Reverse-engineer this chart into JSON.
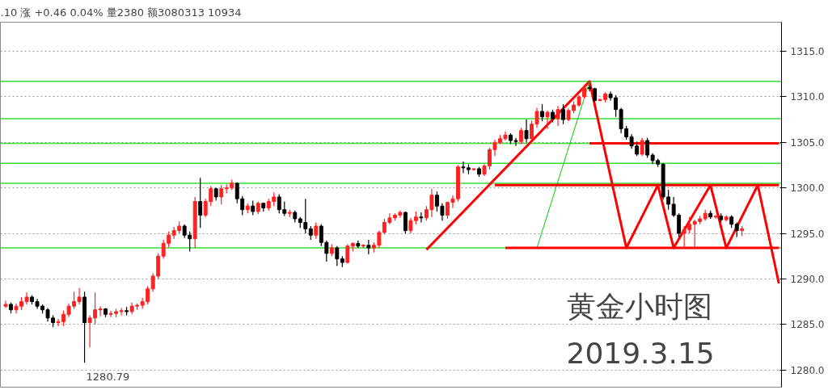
{
  "chart_data": {
    "type": "candlestick",
    "title": "黄金小时图",
    "subtitle": "2019.3.15",
    "annotations": [
      ".10 涨 +0.46 0.04% 量2380 额3080313 10934",
      "1280.79"
    ],
    "categories": [
      null,
      null,
      null,
      null,
      null,
      null,
      null,
      null,
      null,
      null,
      null,
      null,
      null,
      null,
      null,
      null,
      null,
      null,
      null,
      null,
      null,
      null,
      null,
      null,
      null,
      null,
      null,
      null,
      null,
      null,
      null,
      null,
      null,
      null,
      null,
      null,
      null,
      null,
      null,
      null,
      null,
      null,
      null,
      null,
      null,
      null,
      null,
      null,
      null,
      null,
      null,
      null,
      null,
      null,
      null,
      null,
      null,
      null,
      null,
      null,
      null,
      null,
      null,
      null,
      null,
      null,
      null,
      null,
      null,
      null,
      null,
      null,
      null,
      null,
      null,
      null,
      null,
      null,
      null,
      null,
      null,
      null,
      null,
      null,
      null,
      null,
      null,
      null,
      null,
      null,
      null,
      null,
      null,
      null,
      null,
      null,
      null,
      null,
      null,
      null,
      null,
      null,
      null,
      null,
      null,
      null,
      null,
      null,
      null,
      null,
      null,
      null,
      null,
      null,
      null,
      null,
      null,
      null,
      null,
      null,
      null,
      null,
      null,
      null,
      null,
      null,
      null,
      null,
      null,
      null,
      null,
      null,
      null,
      null,
      null,
      null,
      null,
      null,
      null,
      null,
      null,
      null,
      null,
      null,
      null,
      null,
      null,
      null
    ],
    "ohlc": [
      [
        1287.0,
        1287.6,
        1286.8,
        1287.2
      ],
      [
        1287.2,
        1287.4,
        1286.2,
        1286.6
      ],
      [
        1286.6,
        1287.3,
        1286.2,
        1287.0
      ],
      [
        1287.0,
        1288.0,
        1286.6,
        1287.5
      ],
      [
        1287.5,
        1288.5,
        1287.2,
        1288.0
      ],
      [
        1288.0,
        1288.2,
        1287.2,
        1287.5
      ],
      [
        1287.5,
        1287.8,
        1286.7,
        1287.0
      ],
      [
        1287.0,
        1287.2,
        1286.2,
        1286.6
      ],
      [
        1286.6,
        1286.8,
        1285.3,
        1285.7
      ],
      [
        1285.7,
        1286.0,
        1284.7,
        1285.2
      ],
      [
        1285.2,
        1285.6,
        1284.8,
        1285.3
      ],
      [
        1285.3,
        1286.5,
        1284.8,
        1286.1
      ],
      [
        1286.1,
        1287.3,
        1285.8,
        1287.0
      ],
      [
        1287.0,
        1288.6,
        1286.7,
        1287.5
      ],
      [
        1287.5,
        1289.0,
        1287.2,
        1288.0
      ],
      [
        1288.0,
        1288.6,
        1280.79,
        1285.2
      ],
      [
        1285.2,
        1286.0,
        1282.5,
        1285.7
      ],
      [
        1285.7,
        1288.5,
        1285.0,
        1286.6
      ],
      [
        1286.6,
        1287.0,
        1285.9,
        1286.7
      ],
      [
        1286.7,
        1286.8,
        1285.8,
        1286.1
      ],
      [
        1286.1,
        1286.5,
        1285.8,
        1286.2
      ],
      [
        1286.2,
        1286.7,
        1285.8,
        1286.4
      ],
      [
        1286.4,
        1286.8,
        1286.0,
        1286.5
      ],
      [
        1286.5,
        1286.9,
        1286.0,
        1286.4
      ],
      [
        1286.4,
        1287.4,
        1286.1,
        1287.0
      ],
      [
        1287.0,
        1287.3,
        1286.6,
        1287.1
      ],
      [
        1287.1,
        1287.9,
        1286.7,
        1287.5
      ],
      [
        1287.5,
        1289.2,
        1287.2,
        1288.9
      ],
      [
        1288.9,
        1290.6,
        1288.6,
        1290.3
      ],
      [
        1290.3,
        1292.8,
        1290.0,
        1292.5
      ],
      [
        1292.5,
        1294.3,
        1292.2,
        1293.9
      ],
      [
        1293.9,
        1295.2,
        1293.5,
        1294.8
      ],
      [
        1294.8,
        1295.7,
        1294.4,
        1295.3
      ],
      [
        1295.3,
        1296.3,
        1295.0,
        1295.8
      ],
      [
        1295.8,
        1296.0,
        1294.5,
        1294.8
      ],
      [
        1294.8,
        1295.2,
        1293.0,
        1294.4
      ],
      [
        1294.4,
        1299.0,
        1293.4,
        1298.5
      ],
      [
        1298.5,
        1301.1,
        1295.6,
        1297.0
      ],
      [
        1297.0,
        1298.8,
        1296.8,
        1298.5
      ],
      [
        1298.5,
        1300.2,
        1298.0,
        1299.9
      ],
      [
        1299.9,
        1300.0,
        1298.6,
        1299.0
      ],
      [
        1299.0,
        1300.3,
        1298.2,
        1299.9
      ],
      [
        1299.9,
        1300.4,
        1299.4,
        1300.0
      ],
      [
        1300.0,
        1300.9,
        1299.8,
        1300.5
      ],
      [
        1300.5,
        1300.6,
        1298.3,
        1298.8
      ],
      [
        1298.8,
        1299.1,
        1297.0,
        1297.6
      ],
      [
        1297.6,
        1298.3,
        1297.2,
        1298.0
      ],
      [
        1298.0,
        1298.6,
        1297.0,
        1297.4
      ],
      [
        1297.4,
        1298.5,
        1297.1,
        1298.3
      ],
      [
        1298.3,
        1298.4,
        1297.4,
        1297.8
      ],
      [
        1297.8,
        1298.8,
        1297.5,
        1298.5
      ],
      [
        1298.5,
        1299.5,
        1298.0,
        1299.0
      ],
      [
        1299.0,
        1299.3,
        1297.2,
        1297.6
      ],
      [
        1297.6,
        1298.5,
        1296.9,
        1297.2
      ],
      [
        1297.2,
        1297.6,
        1296.8,
        1297.3
      ],
      [
        1297.3,
        1297.5,
        1296.2,
        1296.6
      ],
      [
        1296.6,
        1296.8,
        1295.6,
        1296.2
      ],
      [
        1296.2,
        1298.8,
        1295.0,
        1295.5
      ],
      [
        1295.5,
        1295.8,
        1294.3,
        1294.8
      ],
      [
        1294.8,
        1296.2,
        1294.4,
        1295.8
      ],
      [
        1295.8,
        1296.0,
        1293.6,
        1294.0
      ],
      [
        1294.0,
        1294.2,
        1291.9,
        1292.8
      ],
      [
        1292.8,
        1293.8,
        1292.5,
        1293.4
      ],
      [
        1293.4,
        1293.6,
        1291.4,
        1292.2
      ],
      [
        1292.2,
        1292.5,
        1291.3,
        1291.8
      ],
      [
        1291.8,
        1293.8,
        1291.7,
        1293.6
      ],
      [
        1293.6,
        1294.0,
        1293.0,
        1293.9
      ],
      [
        1293.9,
        1294.2,
        1293.4,
        1293.6
      ],
      [
        1293.6,
        1293.8,
        1293.4,
        1293.7
      ],
      [
        1293.7,
        1294.3,
        1292.7,
        1293.4
      ],
      [
        1293.4,
        1294.0,
        1292.9,
        1293.7
      ],
      [
        1293.7,
        1295.3,
        1293.4,
        1295.1
      ],
      [
        1295.1,
        1296.6,
        1294.9,
        1296.2
      ],
      [
        1296.2,
        1297.2,
        1296.0,
        1296.7
      ],
      [
        1296.7,
        1297.2,
        1296.4,
        1297.0
      ],
      [
        1297.0,
        1297.5,
        1296.7,
        1297.3
      ],
      [
        1297.3,
        1297.4,
        1295.0,
        1295.3
      ],
      [
        1295.3,
        1296.7,
        1295.0,
        1296.4
      ],
      [
        1296.4,
        1297.4,
        1296.0,
        1296.8
      ],
      [
        1296.8,
        1297.3,
        1296.2,
        1296.7
      ],
      [
        1296.7,
        1298.0,
        1296.4,
        1297.6
      ],
      [
        1297.6,
        1299.9,
        1296.8,
        1299.2
      ],
      [
        1299.2,
        1299.6,
        1297.4,
        1298.0
      ],
      [
        1298.0,
        1298.3,
        1296.4,
        1297.0
      ],
      [
        1297.0,
        1298.5,
        1296.6,
        1298.4
      ],
      [
        1298.4,
        1299.2,
        1297.8,
        1298.8
      ],
      [
        1298.8,
        1302.5,
        1298.5,
        1302.3
      ],
      [
        1302.3,
        1302.9,
        1301.6,
        1302.2
      ],
      [
        1302.2,
        1302.6,
        1301.5,
        1302.0
      ],
      [
        1302.0,
        1302.1,
        1301.9,
        1302.1
      ],
      [
        1302.1,
        1302.3,
        1301.2,
        1301.5
      ],
      [
        1301.5,
        1302.6,
        1301.3,
        1302.4
      ],
      [
        1302.4,
        1304.4,
        1302.0,
        1304.2
      ],
      [
        1304.2,
        1305.3,
        1303.5,
        1305.0
      ],
      [
        1305.0,
        1305.8,
        1304.8,
        1305.4
      ],
      [
        1305.4,
        1306.2,
        1305.2,
        1305.8
      ],
      [
        1305.8,
        1306.0,
        1304.8,
        1305.2
      ],
      [
        1305.2,
        1305.5,
        1304.6,
        1305.1
      ],
      [
        1305.1,
        1306.6,
        1304.8,
        1306.3
      ],
      [
        1306.3,
        1307.5,
        1305.0,
        1305.4
      ],
      [
        1305.4,
        1307.4,
        1305.2,
        1307.0
      ],
      [
        1307.0,
        1308.8,
        1306.6,
        1308.4
      ],
      [
        1308.4,
        1309.2,
        1307.3,
        1307.8
      ],
      [
        1307.8,
        1308.5,
        1306.5,
        1308.3
      ],
      [
        1308.3,
        1308.6,
        1307.2,
        1307.6
      ],
      [
        1307.6,
        1309.0,
        1306.8,
        1308.6
      ],
      [
        1308.6,
        1309.2,
        1307.0,
        1307.5
      ],
      [
        1307.5,
        1308.7,
        1307.3,
        1308.5
      ],
      [
        1308.5,
        1309.5,
        1308.2,
        1309.1
      ],
      [
        1309.1,
        1310.2,
        1308.9,
        1310.0
      ],
      [
        1310.0,
        1311.3,
        1309.8,
        1311.0
      ],
      [
        1311.0,
        1311.3,
        1310.6,
        1310.9
      ],
      [
        1310.9,
        1311.0,
        1309.4,
        1309.6
      ],
      [
        1309.6,
        1309.8,
        1309.5,
        1309.7
      ],
      [
        1309.7,
        1310.5,
        1309.4,
        1310.3
      ],
      [
        1310.3,
        1310.6,
        1309.6,
        1309.9
      ],
      [
        1309.9,
        1310.2,
        1307.8,
        1308.6
      ],
      [
        1308.6,
        1308.8,
        1306.0,
        1306.5
      ],
      [
        1306.5,
        1306.8,
        1305.3,
        1305.6
      ],
      [
        1305.6,
        1305.9,
        1304.3,
        1304.6
      ],
      [
        1304.6,
        1305.1,
        1303.5,
        1303.7
      ],
      [
        1303.7,
        1305.5,
        1303.5,
        1305.2
      ],
      [
        1305.2,
        1305.5,
        1303.3,
        1303.6
      ],
      [
        1303.6,
        1303.8,
        1302.6,
        1303.0
      ],
      [
        1303.0,
        1303.2,
        1302.3,
        1302.6
      ],
      [
        1302.6,
        1302.7,
        1298.7,
        1299.0
      ],
      [
        1299.0,
        1299.8,
        1297.6,
        1298.2
      ],
      [
        1298.2,
        1299.0,
        1296.8,
        1297.0
      ],
      [
        1297.0,
        1297.2,
        1294.6,
        1295.0
      ],
      [
        1295.0,
        1295.8,
        1293.4,
        1295.4
      ],
      [
        1295.4,
        1296.8,
        1295.0,
        1296.0
      ],
      [
        1296.0,
        1296.5,
        1293.4,
        1296.3
      ],
      [
        1296.3,
        1296.9,
        1296.0,
        1296.6
      ],
      [
        1296.6,
        1297.6,
        1296.4,
        1297.2
      ],
      [
        1297.2,
        1297.5,
        1296.6,
        1296.8
      ],
      [
        1296.8,
        1297.0,
        1296.6,
        1296.9
      ],
      [
        1296.9,
        1297.2,
        1296.2,
        1296.5
      ],
      [
        1296.5,
        1297.0,
        1296.3,
        1296.8
      ],
      [
        1296.8,
        1297.0,
        1295.6,
        1296.0
      ],
      [
        1296.0,
        1296.2,
        1294.6,
        1295.3
      ],
      [
        1295.3,
        1295.8,
        1294.7,
        1295.5
      ],
      null,
      null,
      null,
      null,
      null,
      null,
      null
    ],
    "series": [
      {
        "type": "line",
        "color": "#ff0000",
        "values": [
          null,
          null,
          null,
          null,
          null,
          null,
          null,
          null,
          null,
          null,
          null,
          null,
          null,
          null,
          null,
          null,
          null,
          null,
          null,
          null,
          null,
          null,
          null,
          null,
          null,
          null,
          null,
          null,
          null,
          null,
          null,
          null,
          null,
          null,
          null,
          null,
          null,
          null,
          null,
          null,
          null,
          null,
          null,
          null,
          null,
          null,
          null,
          null,
          null,
          null,
          null,
          null,
          null,
          null,
          null,
          null,
          null,
          null,
          null,
          null,
          null,
          null,
          null,
          null,
          null,
          null,
          null,
          null,
          null,
          null,
          null,
          null,
          null,
          null,
          null,
          null,
          null,
          null,
          null,
          null,
          1293.2,
          null,
          null,
          null,
          null,
          null,
          null,
          null,
          null,
          null,
          null,
          null,
          null,
          null,
          null,
          null,
          null,
          null,
          null,
          null,
          null,
          null,
          null,
          null,
          null,
          null,
          null,
          null,
          null,
          null,
          null,
          1311.7,
          null,
          null,
          null,
          null,
          null,
          null,
          1293.4,
          null,
          null,
          null,
          null,
          null,
          1300.3,
          null,
          null,
          1293.4,
          null,
          null,
          null,
          null,
          null,
          null,
          1300.3,
          null,
          null,
          1293.4,
          null,
          null,
          null,
          null,
          null,
          1300.3,
          null,
          null,
          null,
          1289.5
        ]
      },
      {
        "type": "line",
        "color": "#00cc00",
        "values": [
          null,
          null,
          null,
          null,
          null,
          null,
          null,
          null,
          null,
          null,
          null,
          null,
          null,
          null,
          null,
          null,
          null,
          null,
          null,
          null,
          null,
          null,
          null,
          null,
          null,
          null,
          null,
          null,
          null,
          null,
          null,
          null,
          null,
          null,
          null,
          null,
          null,
          null,
          null,
          null,
          null,
          null,
          null,
          null,
          null,
          null,
          null,
          null,
          null,
          null,
          null,
          null,
          null,
          null,
          null,
          null,
          null,
          null,
          null,
          null,
          null,
          null,
          null,
          null,
          null,
          null,
          null,
          null,
          null,
          null,
          null,
          null,
          null,
          null,
          null,
          null,
          null,
          null,
          null,
          null,
          null,
          null,
          null,
          null,
          null,
          null,
          null,
          null,
          null,
          null,
          null,
          null,
          null,
          null,
          null,
          null,
          null,
          null,
          null,
          null,
          null,
          1293.4,
          null,
          null,
          null,
          null,
          null,
          null,
          null,
          null,
          null,
          1311.7,
          null,
          null,
          null,
          null,
          null,
          null,
          null,
          null,
          null,
          null,
          null,
          null,
          null,
          null,
          null,
          null,
          null,
          null,
          null,
          null,
          null,
          null,
          null,
          null,
          null,
          null,
          null,
          null,
          null,
          null,
          null,
          null,
          null,
          null,
          null,
          null
        ]
      },
      {
        "type": "line",
        "color": "#ff0000",
        "values": [
          null,
          null,
          null,
          null,
          null,
          null,
          null,
          null,
          null,
          null,
          null,
          null,
          null,
          null,
          null,
          null,
          null,
          null,
          null,
          null,
          null,
          null,
          null,
          null,
          null,
          null,
          null,
          null,
          null,
          null,
          null,
          null,
          null,
          null,
          null,
          null,
          null,
          null,
          null,
          null,
          null,
          null,
          null,
          null,
          null,
          null,
          null,
          null,
          null,
          null,
          null,
          null,
          null,
          null,
          null,
          null,
          null,
          null,
          null,
          null,
          null,
          null,
          null,
          null,
          null,
          null,
          null,
          null,
          null,
          null,
          null,
          null,
          null,
          null,
          null,
          null,
          null,
          null,
          null,
          null,
          null,
          null,
          null,
          null,
          null,
          null,
          null,
          null,
          null,
          null,
          null,
          null,
          null,
          null,
          null,
          null,
          null,
          null,
          null,
          null,
          null,
          null,
          null,
          null,
          null,
          null,
          null,
          null,
          null,
          null,
          null,
          1304.9,
          null,
          null,
          null,
          null,
          null,
          null,
          null,
          null,
          null,
          null,
          null,
          null,
          null,
          null,
          null,
          null,
          null,
          null,
          null,
          null,
          null,
          null,
          null,
          null,
          null,
          null,
          null,
          null,
          null,
          null,
          null,
          null,
          null,
          null,
          null,
          1304.9
        ]
      },
      {
        "type": "line",
        "color": "#ff0000",
        "values": [
          null,
          null,
          null,
          null,
          null,
          null,
          null,
          null,
          null,
          null,
          null,
          null,
          null,
          null,
          null,
          null,
          null,
          null,
          null,
          null,
          null,
          null,
          null,
          null,
          null,
          null,
          null,
          null,
          null,
          null,
          null,
          null,
          null,
          null,
          null,
          null,
          null,
          null,
          null,
          null,
          null,
          null,
          null,
          null,
          null,
          null,
          null,
          null,
          null,
          null,
          null,
          null,
          null,
          null,
          null,
          null,
          null,
          null,
          null,
          null,
          null,
          null,
          null,
          null,
          null,
          null,
          null,
          null,
          null,
          null,
          null,
          null,
          null,
          null,
          null,
          null,
          null,
          null,
          null,
          null,
          null,
          null,
          null,
          null,
          null,
          null,
          null,
          null,
          null,
          null,
          null,
          null,
          null,
          1300.3,
          null,
          null,
          null,
          null,
          null,
          null,
          null,
          null,
          null,
          null,
          null,
          null,
          null,
          null,
          null,
          null,
          null,
          null,
          null,
          null,
          null,
          null,
          null,
          null,
          null,
          null,
          null,
          null,
          null,
          null,
          null,
          null,
          null,
          null,
          null,
          null,
          null,
          null,
          null,
          null,
          null,
          null,
          null,
          null,
          null,
          null,
          null,
          null,
          null,
          null,
          null,
          null,
          null,
          1300.3
        ]
      },
      {
        "type": "line",
        "color": "#ff0000",
        "values": [
          null,
          null,
          null,
          null,
          null,
          null,
          null,
          null,
          null,
          null,
          null,
          null,
          null,
          null,
          null,
          null,
          null,
          null,
          null,
          null,
          null,
          null,
          null,
          null,
          null,
          null,
          null,
          null,
          null,
          null,
          null,
          null,
          null,
          null,
          null,
          null,
          null,
          null,
          null,
          null,
          null,
          null,
          null,
          null,
          null,
          null,
          null,
          null,
          null,
          null,
          null,
          null,
          null,
          null,
          null,
          null,
          null,
          null,
          null,
          null,
          null,
          null,
          null,
          null,
          null,
          null,
          null,
          null,
          null,
          null,
          null,
          null,
          null,
          null,
          null,
          null,
          null,
          null,
          null,
          null,
          null,
          null,
          null,
          null,
          null,
          null,
          null,
          null,
          null,
          null,
          null,
          null,
          null,
          null,
          null,
          1293.4,
          null,
          null,
          null,
          null,
          null,
          null,
          null,
          null,
          null,
          null,
          null,
          null,
          null,
          null,
          null,
          null,
          null,
          null,
          null,
          null,
          null,
          null,
          null,
          null,
          null,
          null,
          null,
          null,
          null,
          null,
          null,
          null,
          null,
          null,
          null,
          null,
          null,
          null,
          null,
          null,
          null,
          null,
          null,
          null,
          null,
          null,
          null,
          null,
          null,
          null,
          null,
          1293.4
        ]
      }
    ],
    "ref_lines": [
      {
        "axis": "y",
        "value": 1311.7,
        "color": "#33dd33"
      },
      {
        "axis": "y",
        "value": 1307.6,
        "color": "#33dd33"
      },
      {
        "axis": "y",
        "value": 1304.9,
        "color": "#33dd33"
      },
      {
        "axis": "y",
        "value": 1302.7,
        "color": "#33dd33"
      },
      {
        "axis": "y",
        "value": 1300.5,
        "color": "#33dd33"
      },
      {
        "axis": "y",
        "value": 1293.4,
        "color": "#33dd33"
      }
    ],
    "ylim": [
      1278.1,
      1318.2
    ],
    "yticks": [
      {
        "value": 1280,
        "label": "1280.0"
      },
      {
        "value": 1285,
        "label": "1285.0"
      },
      {
        "value": 1290,
        "label": "1290.0"
      },
      {
        "value": 1295,
        "label": "1295.0"
      },
      {
        "value": 1300,
        "label": "1300.0"
      },
      {
        "value": 1305,
        "label": "1305.0"
      },
      {
        "value": 1310,
        "label": "1310.0"
      },
      {
        "value": 1315,
        "label": "1315.0"
      }
    ],
    "tick_labels": "y",
    "grid": "y"
  }
}
